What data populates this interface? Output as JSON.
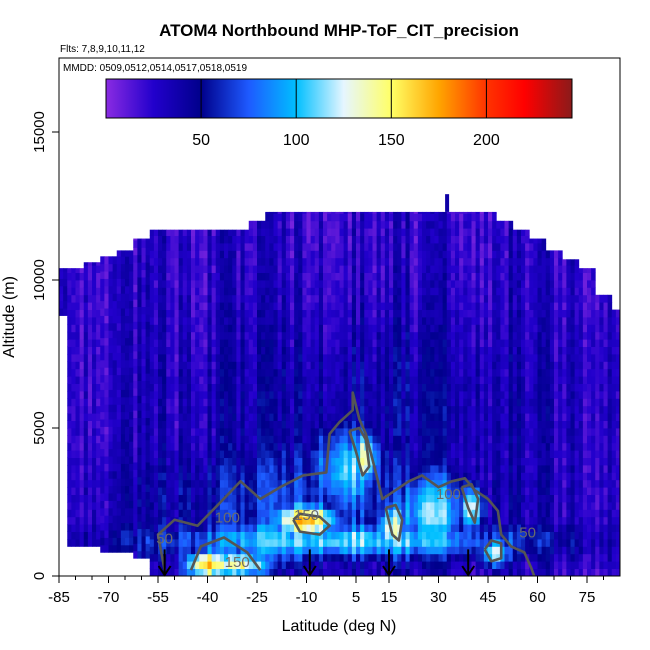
{
  "chart_data": {
    "type": "heatmap",
    "title": "ATOM4 Northbound MHP-ToF_CIT_precision",
    "subtitle_flights": "Flts: 7,8,9,10,11,12",
    "legend_dates": "MMDD: 0509,0512,0514,0517,0518,0519",
    "xlabel": "Latitude (deg N)",
    "ylabel": "Altitude (m)",
    "xlim": [
      -85,
      85
    ],
    "ylim": [
      0,
      17500
    ],
    "x_ticks": [
      -85,
      -70,
      -55,
      -40,
      -25,
      -10,
      5,
      15,
      30,
      45,
      60,
      75
    ],
    "x_tick_labels": [
      "-85",
      "-70",
      "-55",
      "-40",
      "-25",
      "-10",
      "5",
      "15",
      "30",
      "45",
      "60",
      "75"
    ],
    "x_minor_ticks": [
      -80,
      -75,
      -65,
      -60,
      -50,
      -45,
      -35,
      -30,
      -20,
      -15,
      -5,
      0,
      10,
      20,
      25,
      35,
      40,
      50,
      55,
      65,
      70,
      80
    ],
    "y_ticks": [
      0,
      5000,
      10000,
      15000
    ],
    "y_tick_labels": [
      "0",
      "5000",
      "10000",
      "15000"
    ],
    "colorbar": {
      "range": [
        0,
        245
      ],
      "ticks": [
        50,
        100,
        150,
        200
      ],
      "tick_labels": [
        "50",
        "100",
        "150",
        "200"
      ],
      "position": "top-inset",
      "stops": [
        {
          "v": 0,
          "c": "#8a2be2"
        },
        {
          "v": 25,
          "c": "#2200cc"
        },
        {
          "v": 50,
          "c": "#00008b"
        },
        {
          "v": 75,
          "c": "#1e5aff"
        },
        {
          "v": 100,
          "c": "#00bfff"
        },
        {
          "v": 125,
          "c": "#e6f6ff"
        },
        {
          "v": 150,
          "c": "#ffff66"
        },
        {
          "v": 175,
          "c": "#ffa500"
        },
        {
          "v": 200,
          "c": "#ff3300"
        },
        {
          "v": 220,
          "c": "#ff0000"
        },
        {
          "v": 245,
          "c": "#8b1a1a"
        }
      ]
    },
    "value_field": {
      "background": 25,
      "upper_band": {
        "above_alt": 9500,
        "value": 18
      },
      "hotspots": [
        {
          "x": -40,
          "y": 400,
          "rx": 7,
          "ry": 500,
          "v": 170
        },
        {
          "x": -30,
          "y": 400,
          "rx": 9,
          "ry": 450,
          "v": 140
        },
        {
          "x": -10,
          "y": 1900,
          "rx": 10,
          "ry": 550,
          "v": 175
        },
        {
          "x": -22,
          "y": 1200,
          "rx": 22,
          "ry": 900,
          "v": 95
        },
        {
          "x": 2,
          "y": 3600,
          "rx": 12,
          "ry": 1600,
          "v": 110
        },
        {
          "x": 8,
          "y": 4000,
          "rx": 4,
          "ry": 900,
          "v": 140
        },
        {
          "x": 16,
          "y": 1600,
          "rx": 5,
          "ry": 1000,
          "v": 130
        },
        {
          "x": 28,
          "y": 2200,
          "rx": 12,
          "ry": 1400,
          "v": 110
        },
        {
          "x": 40,
          "y": 2300,
          "rx": 4,
          "ry": 800,
          "v": 135
        },
        {
          "x": 47,
          "y": 800,
          "rx": 5,
          "ry": 500,
          "v": 125
        },
        {
          "x": 0,
          "y": 1200,
          "rx": 58,
          "ry": 600,
          "v": 115
        },
        {
          "x": -5,
          "y": 2500,
          "rx": 50,
          "ry": 2200,
          "v": 70
        },
        {
          "x": 10,
          "y": 5500,
          "rx": 55,
          "ry": 3500,
          "v": 45
        }
      ]
    },
    "profile_columns": [
      {
        "lat": -85,
        "top": 10400,
        "bottom": 8800
      },
      {
        "lat": -80,
        "top": 10400,
        "bottom": 1000
      },
      {
        "lat": -75,
        "top": 10600,
        "bottom": 1000
      },
      {
        "lat": -70,
        "top": 10800,
        "bottom": 800
      },
      {
        "lat": -65,
        "top": 11000,
        "bottom": 800
      },
      {
        "lat": -60,
        "top": 11400,
        "bottom": 600
      },
      {
        "lat": -55,
        "top": 11700,
        "bottom": 0
      },
      {
        "lat": -50,
        "top": 11700,
        "bottom": 0
      },
      {
        "lat": -45,
        "top": 11700,
        "bottom": 0
      },
      {
        "lat": -40,
        "top": 11700,
        "bottom": 0
      },
      {
        "lat": -35,
        "top": 11700,
        "bottom": 0
      },
      {
        "lat": -30,
        "top": 11700,
        "bottom": 0
      },
      {
        "lat": -25,
        "top": 12000,
        "bottom": 0
      },
      {
        "lat": -20,
        "top": 12300,
        "bottom": 0
      },
      {
        "lat": -15,
        "top": 12300,
        "bottom": 0
      },
      {
        "lat": -10,
        "top": 12300,
        "bottom": 0
      },
      {
        "lat": -5,
        "top": 12300,
        "bottom": 0
      },
      {
        "lat": 0,
        "top": 12300,
        "bottom": 0
      },
      {
        "lat": 5,
        "top": 12300,
        "bottom": 0
      },
      {
        "lat": 10,
        "top": 12300,
        "bottom": 0
      },
      {
        "lat": 15,
        "top": 12300,
        "bottom": 0
      },
      {
        "lat": 20,
        "top": 12300,
        "bottom": 0
      },
      {
        "lat": 25,
        "top": 12300,
        "bottom": 0
      },
      {
        "lat": 30,
        "top": 12300,
        "bottom": 0
      },
      {
        "lat": 35,
        "top": 12300,
        "bottom": 0
      },
      {
        "lat": 40,
        "top": 12300,
        "bottom": 0
      },
      {
        "lat": 45,
        "top": 12300,
        "bottom": 0
      },
      {
        "lat": 50,
        "top": 12000,
        "bottom": 0
      },
      {
        "lat": 55,
        "top": 11700,
        "bottom": 0
      },
      {
        "lat": 60,
        "top": 11400,
        "bottom": 0
      },
      {
        "lat": 65,
        "top": 11000,
        "bottom": 0
      },
      {
        "lat": 70,
        "top": 10700,
        "bottom": 0
      },
      {
        "lat": 75,
        "top": 10400,
        "bottom": 0
      },
      {
        "lat": 80,
        "top": 9500,
        "bottom": 0
      },
      {
        "lat": 85,
        "top": 9000,
        "bottom": 0
      }
    ],
    "contour_lines": [
      {
        "level": 100,
        "points": [
          [
            -53,
            200
          ],
          [
            -55,
            1400
          ],
          [
            -50,
            1900
          ],
          [
            -43,
            1700
          ],
          [
            -36,
            2500
          ],
          [
            -30,
            3200
          ],
          [
            -24,
            2600
          ],
          [
            -18,
            3000
          ],
          [
            -11,
            3400
          ],
          [
            -4,
            3500
          ],
          [
            -3,
            4800
          ],
          [
            0,
            5200
          ],
          [
            4,
            5600
          ],
          [
            4,
            6200
          ],
          [
            6,
            5300
          ],
          [
            8,
            4800
          ],
          [
            11,
            3500
          ],
          [
            13,
            2600
          ],
          [
            17,
            2900
          ],
          [
            21,
            3200
          ],
          [
            25,
            3400
          ],
          [
            30,
            3000
          ],
          [
            34,
            3200
          ],
          [
            38,
            3300
          ],
          [
            41,
            2900
          ],
          [
            45,
            2600
          ],
          [
            48,
            2200
          ],
          [
            49,
            1400
          ],
          [
            52,
            1000
          ],
          [
            56,
            800
          ],
          [
            58,
            300
          ],
          [
            59,
            0
          ]
        ]
      },
      {
        "level": 150,
        "points": [
          [
            -14,
            1900
          ],
          [
            -12,
            1500
          ],
          [
            -6,
            1400
          ],
          [
            -3,
            1700
          ],
          [
            -6,
            2000
          ],
          [
            -12,
            2100
          ],
          [
            -14,
            1900
          ]
        ]
      },
      {
        "level": 150,
        "points": [
          [
            3,
            4900
          ],
          [
            5,
            4200
          ],
          [
            7,
            3400
          ],
          [
            9,
            3700
          ],
          [
            8,
            4600
          ],
          [
            6,
            5000
          ],
          [
            3,
            4900
          ]
        ]
      },
      {
        "level": 150,
        "points": [
          [
            -45,
            200
          ],
          [
            -42,
            1000
          ],
          [
            -35,
            1300
          ],
          [
            -28,
            800
          ],
          [
            -24,
            200
          ]
        ]
      },
      {
        "level": 150,
        "points": [
          [
            14,
            2300
          ],
          [
            16,
            1400
          ],
          [
            18,
            1200
          ],
          [
            19,
            1900
          ],
          [
            17,
            2400
          ],
          [
            14,
            2300
          ]
        ]
      },
      {
        "level": 150,
        "points": [
          [
            37,
            3000
          ],
          [
            39,
            2300
          ],
          [
            41,
            1800
          ],
          [
            42,
            2600
          ],
          [
            40,
            3100
          ],
          [
            37,
            3000
          ]
        ]
      },
      {
        "level": 100,
        "points": [
          [
            44,
            900
          ],
          [
            46,
            500
          ],
          [
            49,
            600
          ],
          [
            49,
            1100
          ],
          [
            46,
            1200
          ],
          [
            44,
            900
          ]
        ]
      }
    ],
    "contour_labels": [
      {
        "text": "100",
        "x": -34,
        "y": 1800
      },
      {
        "text": "150",
        "x": -10,
        "y": 1900
      },
      {
        "text": "150",
        "x": -31,
        "y": 300
      },
      {
        "text": "100",
        "x": 33,
        "y": 2600
      },
      {
        "text": "50",
        "x": -53,
        "y": 1100
      },
      {
        "text": "50",
        "x": 57,
        "y": 1300
      }
    ],
    "arrows": [
      {
        "lat": -53,
        "from_alt": 900,
        "to_alt": 0
      },
      {
        "lat": -9,
        "from_alt": 900,
        "to_alt": 0
      },
      {
        "lat": 15,
        "from_alt": 900,
        "to_alt": 0
      },
      {
        "lat": 39,
        "from_alt": 900,
        "to_alt": 0
      }
    ]
  }
}
